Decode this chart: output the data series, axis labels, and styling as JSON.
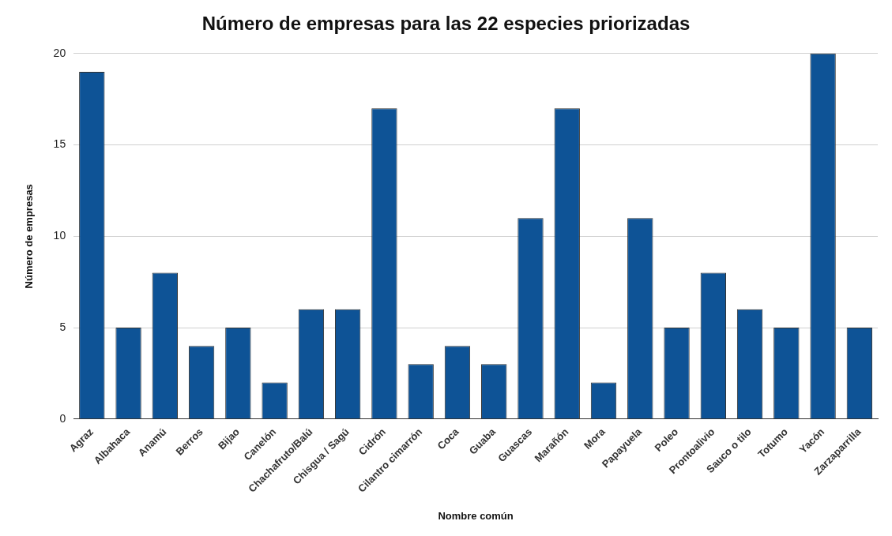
{
  "chart_data": {
    "type": "bar",
    "title": "Número de empresas para las 22 especies priorizadas",
    "xlabel": "Nombre común",
    "ylabel": "Número de empresas",
    "categories": [
      "Agraz",
      "Albahaca",
      "Anamú",
      "Berros",
      "Bijao",
      "Canelón",
      "Chachafruto/Balú",
      "Chisgua / Sagú",
      "Cidrón",
      "Cilantro cimarrón",
      "Coca",
      "Guaba",
      "Guascas",
      "Marañón",
      "Mora",
      "Papayuela",
      "Poleo",
      "Prontoalivio",
      "Sauco o tilo",
      "Totumo",
      "Yacón",
      "Zarzaparrilla"
    ],
    "values": [
      19,
      5,
      8,
      4,
      5,
      2,
      6,
      6,
      17,
      3,
      4,
      3,
      11,
      17,
      2,
      11,
      5,
      8,
      6,
      5,
      20,
      5
    ],
    "color": "#0e5396",
    "ylim": [
      0,
      20
    ],
    "yticks": [
      0,
      5,
      10,
      15,
      20
    ],
    "grid": "y",
    "legend": false
  }
}
